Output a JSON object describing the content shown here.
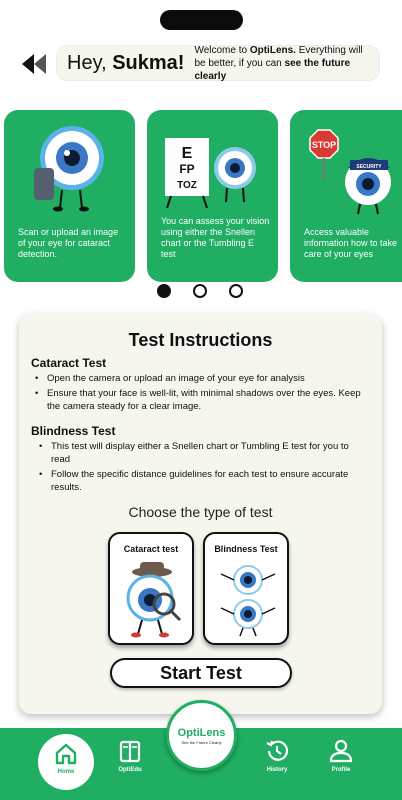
{
  "header": {
    "greeting_prefix": "Hey, ",
    "user_name": "Sukma!",
    "message_pre": "Welcome to ",
    "brand": "OptiLens.",
    "message_mid": " Everything will be better, if you can ",
    "message_bold": "see the future clearly"
  },
  "carousel": {
    "cards": [
      {
        "text": "Scan or upload an image of your eye for cataract detection."
      },
      {
        "text": "You can assess your vision using either the Snellen chart or the Tumbling E test",
        "chart_lines": [
          "E",
          "FP",
          "TOZ"
        ]
      },
      {
        "text": "Access valuable information how to take care of your eyes",
        "sign_stop": "STOP",
        "cap_text": "SECURITY"
      }
    ],
    "active_index": 0
  },
  "instructions": {
    "title": "Test Instructions",
    "cataract_title": "Cataract Test",
    "cataract_items": [
      "Open the camera or upload an image of your eye for analysis",
      "Ensure that your face is well-lit, with minimal shadows over the eyes. Keep the camera steady for a clear image."
    ],
    "blindness_title": "Blindness Test",
    "blindness_items": [
      "This test will display either a Snellen chart or Tumbling E test for you to read",
      "Follow the specific distance guidelines for each test to ensure accurate results."
    ],
    "choose_label": "Choose the type of test",
    "cataract_option": "Cataract test",
    "blindness_option": "Blindness Test",
    "start_label": "Start Test"
  },
  "nav": {
    "home": "Home",
    "edu": "OptiEdu",
    "history": "History",
    "profile": "Profile",
    "badge_title": "OptiLens",
    "badge_sub": "See the Future Clearly"
  },
  "colors": {
    "accent": "#1fae62",
    "panel": "#f6f6ee"
  },
  "icons": [
    "back-arrow-icon",
    "home-icon",
    "book-icon",
    "history-icon",
    "profile-icon"
  ]
}
